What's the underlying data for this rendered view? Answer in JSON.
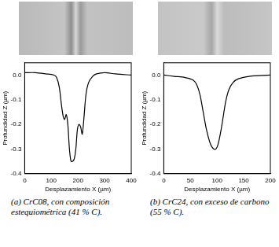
{
  "chart_data": [
    {
      "type": "line",
      "title": "(a) CrC08, con composición estequiométrica (41 % C).",
      "xlabel": "Desplazamiento X (µm)",
      "ylabel": "Profundidad Z (µm)",
      "x": [
        0,
        40,
        80,
        110,
        120,
        130,
        138,
        145,
        150,
        156,
        162,
        168,
        174,
        180,
        186,
        192,
        198,
        204,
        210,
        216,
        222,
        230,
        240,
        255,
        270,
        300,
        340,
        400
      ],
      "values": [
        0.01,
        0.01,
        0.005,
        0.0,
        -0.01,
        -0.05,
        -0.12,
        -0.17,
        -0.18,
        -0.16,
        -0.2,
        -0.3,
        -0.35,
        -0.35,
        -0.34,
        -0.3,
        -0.22,
        -0.2,
        -0.21,
        -0.24,
        -0.18,
        -0.08,
        -0.03,
        -0.005,
        0.005,
        0.01,
        0.005,
        0.0
      ],
      "color": "#000000",
      "xlim": [
        0,
        400
      ],
      "xticks": [
        0,
        100,
        200,
        300,
        400
      ],
      "ylim": [
        -0.4,
        0.05
      ],
      "yticks": [
        {
          "value": 0,
          "label": "0.0"
        },
        -0.1,
        -0.2,
        -0.3,
        -0.4
      ],
      "grid": false
    },
    {
      "type": "line",
      "title": "(b) CrC24, con exceso de carbono (55 % C).",
      "xlabel": "Desplazamiento X (µm)",
      "ylabel": "Profundidad Z (µm)",
      "x": [
        0,
        20,
        40,
        55,
        62,
        68,
        74,
        80,
        86,
        90,
        94,
        98,
        102,
        106,
        110,
        116,
        122,
        130,
        140,
        160,
        200
      ],
      "values": [
        0.0,
        -0.005,
        -0.01,
        -0.02,
        -0.04,
        -0.08,
        -0.15,
        -0.22,
        -0.27,
        -0.29,
        -0.3,
        -0.3,
        -0.28,
        -0.24,
        -0.19,
        -0.11,
        -0.06,
        -0.03,
        -0.015,
        -0.005,
        0.0
      ],
      "color": "#000000",
      "xlim": [
        0,
        200
      ],
      "xticks": [
        0,
        50,
        100,
        150,
        200
      ],
      "ylim": [
        -0.4,
        0.05
      ],
      "yticks": [
        {
          "value": 0,
          "label": "0.0"
        },
        -0.1,
        -0.2,
        -0.3,
        -0.4
      ],
      "grid": false
    }
  ]
}
